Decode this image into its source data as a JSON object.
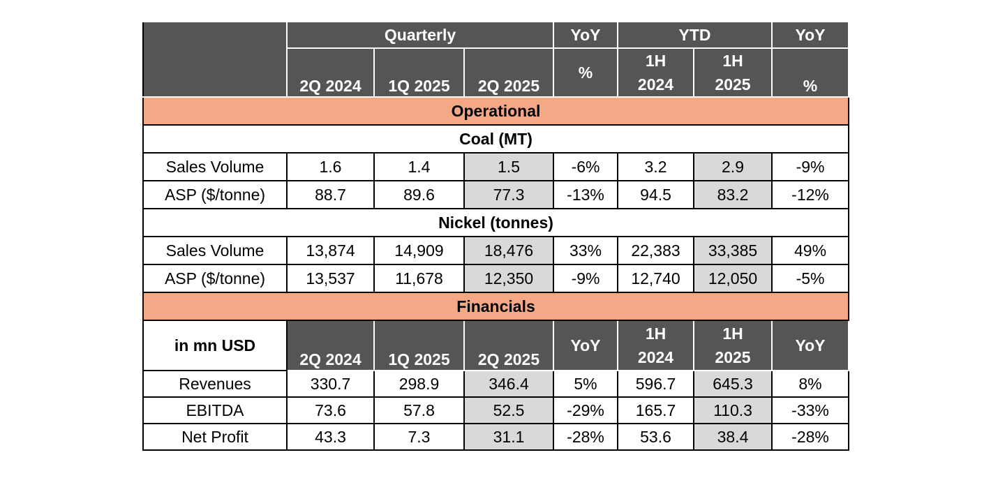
{
  "header": {
    "quarterly": "Quarterly",
    "yoy": "YoY",
    "ytd": "YTD",
    "q_cols": [
      "2Q 2024",
      "1Q 2025",
      "2Q 2025"
    ],
    "pct": "%",
    "h1_2024_a": "1H",
    "h1_2024_b": "2024",
    "h1_2025_a": "1H",
    "h1_2025_b": "2025"
  },
  "operational": {
    "title": "Operational",
    "coal": {
      "title": "Coal (MT)",
      "rows": [
        {
          "label": "Sales Volume",
          "values": [
            "1.6",
            "1.4",
            "1.5",
            "-6%",
            "3.2",
            "2.9",
            "-9%"
          ]
        },
        {
          "label": "ASP ($/tonne)",
          "values": [
            "88.7",
            "89.6",
            "77.3",
            "-13%",
            "94.5",
            "83.2",
            "-12%"
          ]
        }
      ]
    },
    "nickel": {
      "title": "Nickel (tonnes)",
      "rows": [
        {
          "label": "Sales Volume",
          "values": [
            "13,874",
            "14,909",
            "18,476",
            "33%",
            "22,383",
            "33,385",
            "49%"
          ]
        },
        {
          "label": "ASP ($/tonne)",
          "values": [
            "13,537",
            "11,678",
            "12,350",
            "-9%",
            "12,740",
            "12,050",
            "-5%"
          ]
        }
      ]
    }
  },
  "financials": {
    "title": "Financials",
    "unit_label": "in mn USD",
    "cols": [
      "2Q 2024",
      "1Q 2025",
      "2Q 2025"
    ],
    "yoy": "YoY",
    "rows": [
      {
        "label": "Revenues",
        "values": [
          "330.7",
          "298.9",
          "346.4",
          "5%",
          "596.7",
          "645.3",
          "8%"
        ]
      },
      {
        "label": "EBITDA",
        "values": [
          "73.6",
          "57.8",
          "52.5",
          "-29%",
          "165.7",
          "110.3",
          "-33%"
        ]
      },
      {
        "label": "Net Profit",
        "values": [
          "43.3",
          "7.3",
          "31.1",
          "-28%",
          "53.6",
          "38.4",
          "-28%"
        ]
      }
    ]
  }
}
